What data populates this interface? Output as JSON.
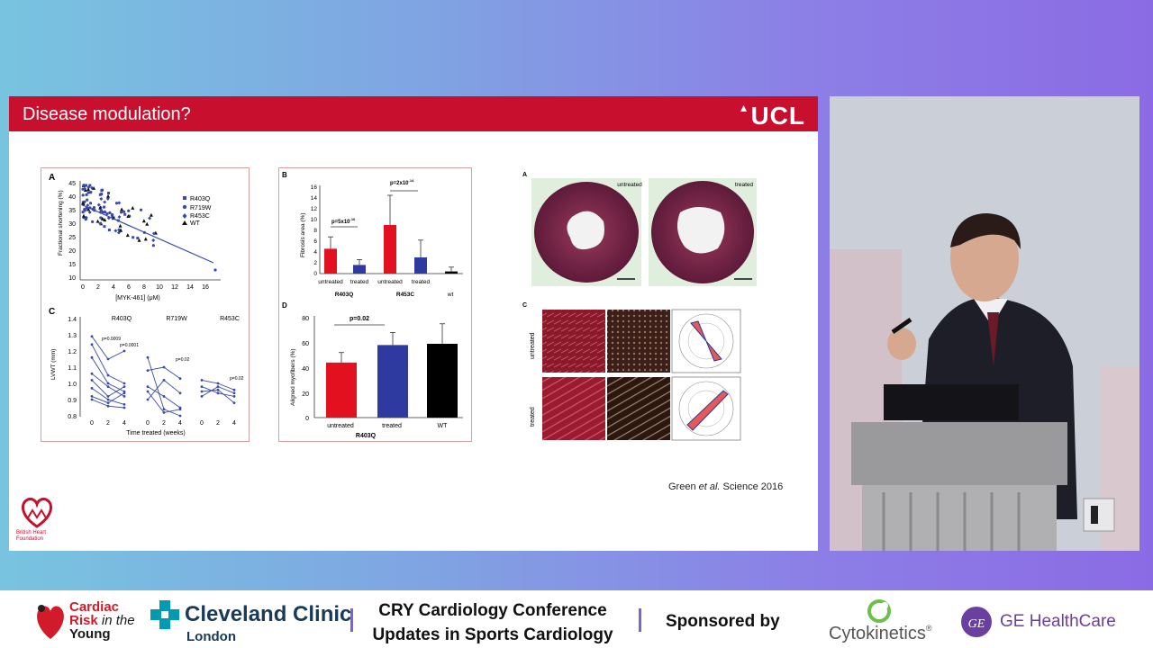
{
  "slide": {
    "title": "Disease modulation?",
    "logo": "UCL",
    "citation_prefix": "Green ",
    "citation_italic": "et al.",
    "citation_suffix": " Science 2016",
    "bhf_label_1": "British Heart",
    "bhf_label_2": "Foundation"
  },
  "panel_left": {
    "label_a": "A",
    "label_c": "C",
    "ylabel_a": "Fractional shortening (%)",
    "xlabel_a": "[MYK-461] (μM)",
    "yticks_a": [
      "45",
      "40",
      "35",
      "30",
      "25",
      "20",
      "15",
      "10"
    ],
    "xticks_a": [
      "0",
      "2",
      "4",
      "6",
      "8",
      "10",
      "12",
      "14",
      "16"
    ],
    "legend": [
      "R403Q",
      "R719W",
      "R453C",
      "WT"
    ],
    "ylabel_c": "LVWT (mm)",
    "xlabel_c": "Time treated (weeks)",
    "yticks_c": [
      "1.4",
      "1.3",
      "1.2",
      "1.1",
      "1.0",
      "0.9",
      "0.8"
    ],
    "groups_c": [
      "R403Q",
      "R719W",
      "R453C"
    ],
    "xticks_c": [
      "0",
      "2",
      "4"
    ],
    "pvals_c": [
      "p=0.0009",
      "p=0.0001",
      "p=0.02",
      "p=0.02"
    ]
  },
  "panel_middle": {
    "label_b": "B",
    "label_d": "D",
    "ylabel_b": "Fibrosis area (%)",
    "yticks_b": [
      "16",
      "14",
      "12",
      "10",
      "8",
      "6",
      "4",
      "2",
      "0"
    ],
    "xticks_b": [
      "untreated",
      "treated",
      "untreated",
      "treated",
      "wt"
    ],
    "groups_b": [
      "R403Q",
      "R453C"
    ],
    "pvals_b": [
      "p=5x10",
      "-16",
      "p=2x10",
      "-14"
    ],
    "ylabel_d": "Aligned myofibers (%)",
    "yticks_d": [
      "80",
      "60",
      "40",
      "20",
      "0"
    ],
    "xticks_d": [
      "untreated",
      "treated",
      "WT"
    ],
    "group_d": "R403Q",
    "pval_d": "p=0.02"
  },
  "panel_right": {
    "label_a": "A",
    "label_c": "C",
    "heart_labels": [
      "untreated",
      "treated"
    ],
    "row_labels": [
      "untreated",
      "treated"
    ]
  },
  "bottom_bar": {
    "cry_line1": "Cardiac",
    "cry_line2": "Risk",
    "cry_line2b": " in the",
    "cry_line3": "Young",
    "cleveland": "Cleveland Clinic",
    "cleveland_sub": "London",
    "conference_line1": "CRY Cardiology Conference",
    "conference_line2": "Updates in Sports Cardiology",
    "sponsored": "Sponsored by",
    "cytokinetics": "Cytokinetics",
    "cytokinetics_mark": "®",
    "ge": "GE HealthCare",
    "ge_monogram": "GE"
  },
  "colors": {
    "slide_header": "#c8102e",
    "bar_red": "#e3101f",
    "bar_blue": "#2f3aa0",
    "bar_black": "#000000",
    "scatter_blue": "#3a4aa8",
    "divider_purple": "#7a63d9",
    "ge_purple": "#6b3fa0"
  }
}
